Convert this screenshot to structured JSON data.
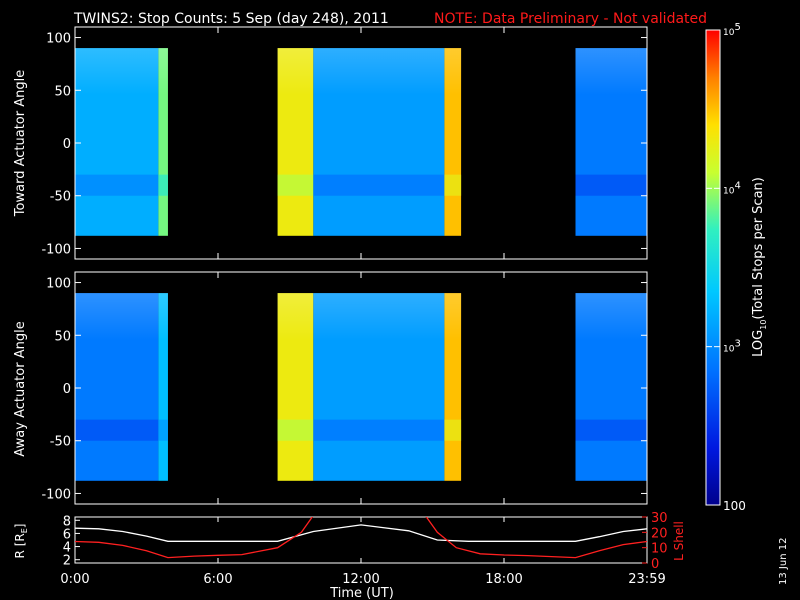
{
  "title": {
    "main": "TWINS2: Stop Counts:  5 Sep (day 248), 2011",
    "note": "NOTE: Data Preliminary - Not validated",
    "note_color": "#ff1a1a"
  },
  "side_date": "13 Jun 12",
  "chart_data": [
    {
      "type": "heatmap",
      "name": "toward-panel",
      "ylabel": "Toward Actuator Angle",
      "ylim": [
        -110,
        110
      ],
      "yticks": [
        100,
        50,
        0,
        -50,
        -100
      ],
      "angle_range": [
        -88,
        90
      ],
      "data_segments_hours": [
        [
          0.0,
          3.9
        ],
        [
          8.5,
          16.2
        ],
        [
          21.0,
          24.0
        ]
      ],
      "dominant_log10_counts": [
        {
          "from": 0.0,
          "to": 3.5,
          "value": 3.2
        },
        {
          "from": 3.5,
          "to": 3.9,
          "value": 3.9
        },
        {
          "from": 8.5,
          "to": 10.0,
          "value": 4.3
        },
        {
          "from": 10.0,
          "to": 15.5,
          "value": 3.1
        },
        {
          "from": 15.5,
          "to": 16.2,
          "value": 4.5
        },
        {
          "from": 21.0,
          "to": 24.0,
          "value": 2.9
        }
      ]
    },
    {
      "type": "heatmap",
      "name": "away-panel",
      "ylabel": "Away Actuator Angle",
      "ylim": [
        -110,
        110
      ],
      "yticks": [
        100,
        50,
        0,
        -50,
        -100
      ],
      "angle_range": [
        -88,
        90
      ],
      "data_segments_hours": [
        [
          0.0,
          3.9
        ],
        [
          8.5,
          16.2
        ],
        [
          21.0,
          24.0
        ]
      ],
      "dominant_log10_counts": [
        {
          "from": 0.0,
          "to": 3.5,
          "value": 2.9
        },
        {
          "from": 3.5,
          "to": 3.9,
          "value": 3.3
        },
        {
          "from": 8.5,
          "to": 10.0,
          "value": 4.3
        },
        {
          "from": 10.0,
          "to": 15.5,
          "value": 3.1
        },
        {
          "from": 15.5,
          "to": 16.2,
          "value": 4.5
        },
        {
          "from": 21.0,
          "to": 24.0,
          "value": 2.9
        }
      ]
    },
    {
      "type": "line",
      "name": "ephemeris-panel",
      "xlabel": "Time (UT)",
      "ylabel_left": "R [R",
      "ylabel_left_sub": "E",
      "ylabel_left_end": "]",
      "ylabel_right": "L Shell",
      "xlim": [
        0,
        24
      ],
      "ylim_left": [
        1.5,
        8.5
      ],
      "ylim_right": [
        0,
        30
      ],
      "yticks_left": [
        8,
        6,
        4,
        2
      ],
      "yticks_right": [
        30,
        20,
        10,
        0
      ],
      "series": [
        {
          "axis": "left",
          "color": "#ffffff",
          "x": [
            0,
            1,
            2,
            3,
            3.9,
            5,
            6,
            7,
            8.5,
            10,
            12,
            14,
            15.2,
            16.5,
            18,
            19.5,
            21.0,
            22,
            23,
            24
          ],
          "y": [
            6.8,
            6.7,
            6.3,
            5.6,
            4.8,
            4.8,
            4.8,
            4.8,
            4.8,
            6.3,
            7.3,
            6.4,
            5.0,
            4.8,
            4.8,
            4.8,
            4.8,
            5.5,
            6.3,
            6.7
          ]
        },
        {
          "axis": "right",
          "color": "#ff2020",
          "x": [
            0,
            1,
            2,
            3,
            3.9,
            5,
            6,
            7,
            8.5,
            9.5,
            10.0
          ],
          "y": [
            14,
            13.5,
            11.5,
            8,
            3.5,
            4.5,
            5.0,
            5.5,
            10,
            20,
            31
          ]
        },
        {
          "axis": "right",
          "color": "#ff2020",
          "x": [
            14.7,
            15.2,
            16.0,
            17,
            18,
            19,
            20,
            21.0,
            22,
            23,
            24
          ],
          "y": [
            31,
            20,
            10,
            6,
            5.2,
            4.8,
            4.2,
            3.5,
            8,
            12,
            14
          ]
        }
      ]
    }
  ],
  "time_axis": {
    "ticks": [
      0,
      6,
      12,
      18,
      24
    ],
    "tick_labels": [
      "0:00",
      "6:00",
      "12:00",
      "18:00",
      "23:59"
    ]
  },
  "colorbar": {
    "label_pre": "LOG",
    "label_sub": "10",
    "label_post": "(Total Stops per Scan)",
    "range_log10": [
      2,
      5
    ],
    "ticks": [
      {
        "value": 5,
        "base": "10",
        "exp": "5",
        "text": ""
      },
      {
        "value": 4,
        "base": "10",
        "exp": "4",
        "text": ""
      },
      {
        "value": 3,
        "base": "10",
        "exp": "3",
        "text": ""
      },
      {
        "value": 2,
        "base": "",
        "exp": "",
        "text": "100"
      }
    ]
  }
}
